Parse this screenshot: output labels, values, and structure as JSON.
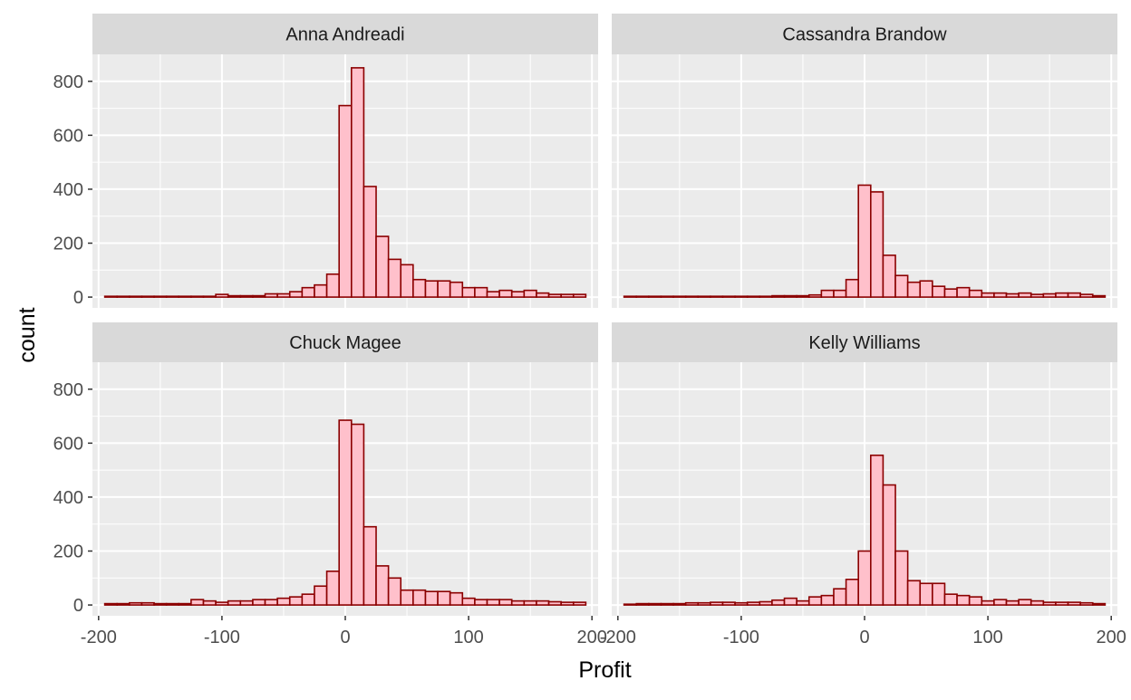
{
  "chart_data": {
    "type": "histogram-facets",
    "xlabel": "Profit",
    "ylabel": "count",
    "xlim": [
      -205,
      205
    ],
    "ylim": [
      -40,
      900
    ],
    "xticks": [
      -200,
      -100,
      0,
      100,
      200
    ],
    "yticks": [
      0,
      200,
      400,
      600,
      800
    ],
    "bin_width": 10,
    "bin_centers": [
      -190,
      -180,
      -170,
      -160,
      -150,
      -140,
      -130,
      -120,
      -110,
      -100,
      -90,
      -80,
      -70,
      -60,
      -50,
      -40,
      -30,
      -20,
      -10,
      0,
      10,
      20,
      30,
      40,
      50,
      60,
      70,
      80,
      90,
      100,
      110,
      120,
      130,
      140,
      150,
      160,
      170,
      180,
      190
    ],
    "colors": {
      "bar_fill": "#ffc0cb",
      "bar_stroke": "#8b0000",
      "panel_bg": "#ebebeb",
      "strip_bg": "#d9d9d9",
      "grid": "#ffffff"
    },
    "grid": true,
    "facets": [
      {
        "name": "Anna Andreadi",
        "values": [
          3,
          3,
          3,
          3,
          3,
          3,
          3,
          3,
          3,
          10,
          5,
          5,
          5,
          12,
          12,
          20,
          35,
          45,
          85,
          710,
          850,
          410,
          225,
          140,
          120,
          65,
          60,
          60,
          55,
          35,
          35,
          20,
          25,
          20,
          25,
          15,
          10,
          10,
          10
        ]
      },
      {
        "name": "Cassandra Brandow",
        "values": [
          3,
          3,
          3,
          3,
          3,
          3,
          3,
          3,
          3,
          3,
          3,
          3,
          5,
          5,
          5,
          8,
          25,
          25,
          65,
          415,
          390,
          155,
          80,
          55,
          60,
          40,
          30,
          35,
          25,
          15,
          15,
          12,
          15,
          10,
          12,
          15,
          15,
          10,
          5
        ]
      },
      {
        "name": "Chuck Magee",
        "values": [
          5,
          5,
          8,
          8,
          5,
          5,
          5,
          20,
          15,
          10,
          15,
          15,
          20,
          20,
          25,
          30,
          40,
          70,
          125,
          685,
          670,
          290,
          145,
          100,
          55,
          55,
          50,
          50,
          45,
          25,
          20,
          20,
          20,
          15,
          15,
          15,
          12,
          10,
          10
        ]
      },
      {
        "name": "Kelly Williams",
        "values": [
          3,
          5,
          5,
          5,
          5,
          8,
          8,
          10,
          10,
          8,
          10,
          12,
          18,
          25,
          15,
          30,
          35,
          60,
          95,
          200,
          555,
          445,
          200,
          90,
          80,
          80,
          40,
          35,
          30,
          15,
          20,
          15,
          20,
          15,
          10,
          10,
          10,
          8,
          5
        ]
      }
    ]
  }
}
